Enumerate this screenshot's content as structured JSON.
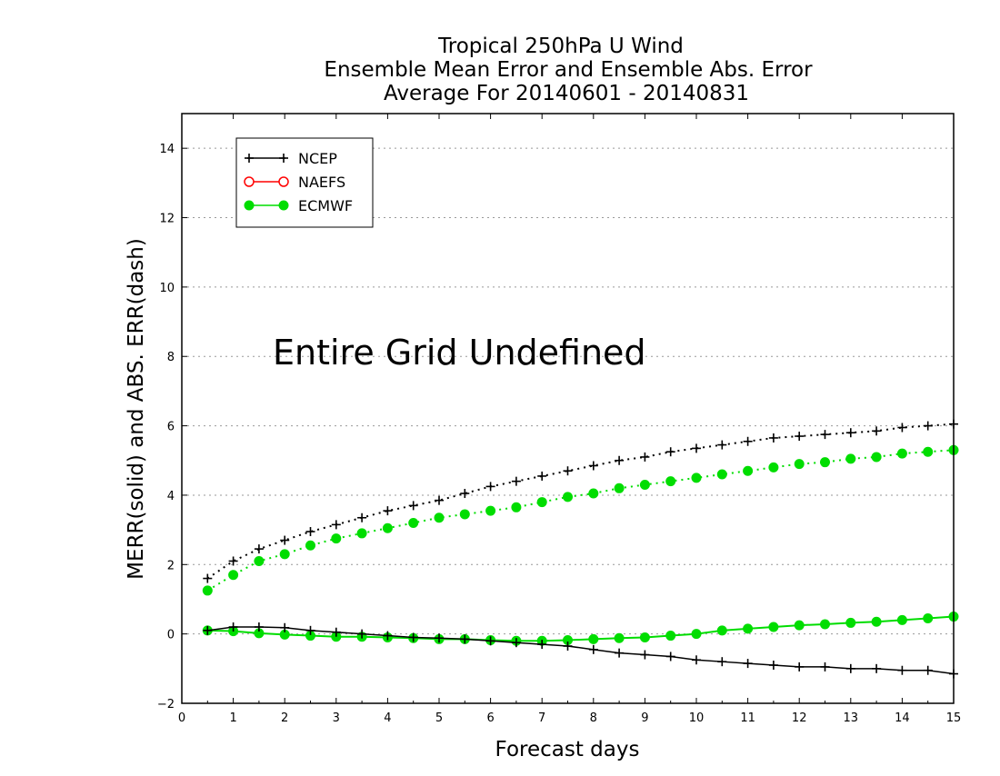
{
  "chart_data": {
    "type": "line",
    "title": [
      "Tropical 250hPa U Wind",
      "Ensemble Mean Error and Ensemble Abs. Error",
      "Average For 20140601 - 20140831"
    ],
    "xlabel": "Forecast days",
    "ylabel": "MERR(solid) and ABS. ERR(dash)",
    "xlim": [
      0,
      15
    ],
    "ylim": [
      -2,
      15
    ],
    "xticks": [
      0,
      1,
      2,
      3,
      4,
      5,
      6,
      7,
      8,
      9,
      10,
      11,
      12,
      13,
      14,
      15
    ],
    "yticks": [
      -2,
      0,
      2,
      4,
      6,
      8,
      10,
      12,
      14
    ],
    "grid": "horizontal dotted",
    "legend_position": "top-left",
    "annotation": "Entire Grid Undefined",
    "x": [
      0.5,
      1,
      1.5,
      2,
      2.5,
      3,
      3.5,
      4,
      4.5,
      5,
      5.5,
      6,
      6.5,
      7,
      7.5,
      8,
      8.5,
      9,
      9.5,
      10,
      10.5,
      11,
      11.5,
      12,
      12.5,
      13,
      13.5,
      14,
      14.5,
      15
    ],
    "series": [
      {
        "name": "NCEP",
        "color": "#000000",
        "marker": "plus",
        "merr": [
          0.1,
          0.2,
          0.2,
          0.18,
          0.1,
          0.05,
          0.0,
          -0.05,
          -0.1,
          -0.12,
          -0.15,
          -0.2,
          -0.25,
          -0.3,
          -0.35,
          -0.45,
          -0.55,
          -0.6,
          -0.65,
          -0.75,
          -0.8,
          -0.85,
          -0.9,
          -0.95,
          -0.95,
          -1.0,
          -1.0,
          -1.05,
          -1.05,
          -1.15
        ],
        "abs_err": [
          1.6,
          2.1,
          2.45,
          2.7,
          2.95,
          3.15,
          3.35,
          3.55,
          3.7,
          3.85,
          4.05,
          4.25,
          4.4,
          4.55,
          4.7,
          4.85,
          5.0,
          5.1,
          5.25,
          5.35,
          5.45,
          5.55,
          5.65,
          5.7,
          5.75,
          5.8,
          5.85,
          5.95,
          6.0,
          6.05
        ]
      },
      {
        "name": "NAEFS",
        "color": "#ff0000",
        "marker": "circle-open",
        "merr": [],
        "abs_err": []
      },
      {
        "name": "ECMWF",
        "color": "#00dd00",
        "marker": "circle-filled",
        "merr": [
          0.1,
          0.08,
          0.02,
          -0.02,
          -0.05,
          -0.08,
          -0.08,
          -0.1,
          -0.12,
          -0.15,
          -0.15,
          -0.18,
          -0.2,
          -0.2,
          -0.18,
          -0.15,
          -0.12,
          -0.1,
          -0.05,
          0.0,
          0.1,
          0.15,
          0.2,
          0.25,
          0.28,
          0.32,
          0.35,
          0.4,
          0.45,
          0.5
        ],
        "abs_err": [
          1.25,
          1.7,
          2.1,
          2.3,
          2.55,
          2.75,
          2.9,
          3.05,
          3.2,
          3.35,
          3.45,
          3.55,
          3.65,
          3.8,
          3.95,
          4.05,
          4.2,
          4.3,
          4.4,
          4.5,
          4.6,
          4.7,
          4.8,
          4.9,
          4.95,
          5.05,
          5.1,
          5.2,
          5.25,
          5.3
        ]
      }
    ]
  }
}
